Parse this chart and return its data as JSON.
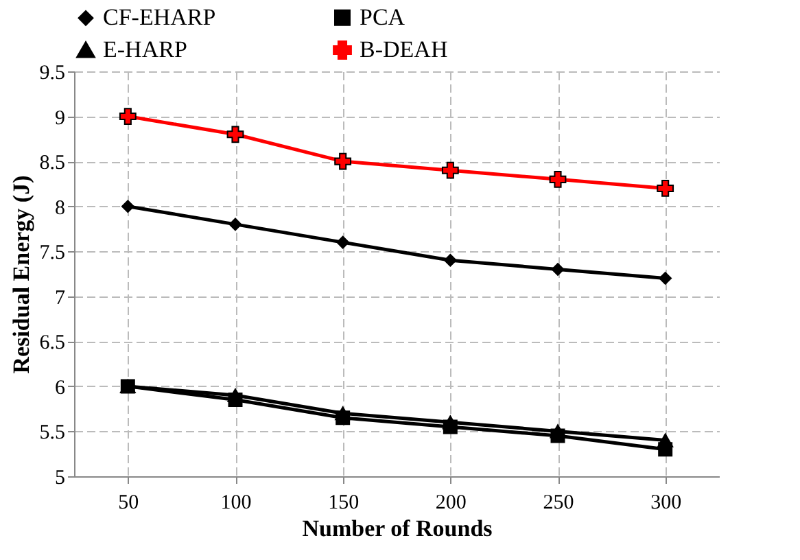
{
  "chart_data": {
    "type": "line",
    "xlabel": "Number of Rounds",
    "ylabel": "Residual Energy (J)",
    "categories": [
      "50",
      "100",
      "150",
      "200",
      "250",
      "300"
    ],
    "series": [
      {
        "name": "CF-EHARP",
        "color": "#000000",
        "marker": "diamond",
        "values": [
          8.0,
          7.8,
          7.6,
          7.4,
          7.3,
          7.2
        ]
      },
      {
        "name": "PCA",
        "color": "#000000",
        "marker": "square",
        "values": [
          6.0,
          5.85,
          5.65,
          5.55,
          5.45,
          5.3
        ]
      },
      {
        "name": "E-HARP",
        "color": "#000000",
        "marker": "triangle",
        "values": [
          6.0,
          5.9,
          5.7,
          5.6,
          5.5,
          5.4
        ]
      },
      {
        "name": "B-DEAH",
        "color": "#ff0000",
        "marker": "cross",
        "values": [
          9.0,
          8.8,
          8.5,
          8.4,
          8.3,
          8.2
        ]
      }
    ],
    "ylim": [
      5,
      9.5
    ],
    "yticks": [
      5,
      5.5,
      6,
      6.5,
      7,
      7.5,
      8,
      8.5,
      9,
      9.5
    ],
    "grid": true,
    "legend": "top",
    "line_style": "solid"
  }
}
